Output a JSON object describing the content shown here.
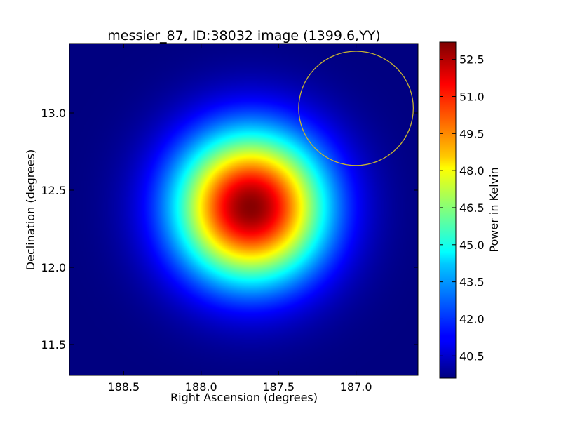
{
  "chart_data": {
    "type": "heatmap",
    "title": "messier_87, ID:38032 image (1399.6,YY)",
    "xlabel": "Right Ascension (degrees)",
    "ylabel": "Declination (degrees)",
    "xlim": [
      188.85,
      186.6
    ],
    "ylim": [
      11.3,
      13.45
    ],
    "x_ticks": [
      188.5,
      188.0,
      187.5,
      187.0
    ],
    "x_tick_labels": [
      "188.5",
      "188.0",
      "187.5",
      "187.0"
    ],
    "y_ticks": [
      11.5,
      12.0,
      12.5,
      13.0
    ],
    "y_tick_labels": [
      "11.5",
      "12.0",
      "12.5",
      "13.0"
    ],
    "colorbar": {
      "label": "Power in Kelvin",
      "range": [
        39.6,
        53.2
      ],
      "ticks": [
        40.5,
        42.0,
        43.5,
        45.0,
        46.5,
        48.0,
        49.5,
        51.0,
        52.5
      ],
      "tick_labels": [
        "40.5",
        "42.0",
        "43.5",
        "45.0",
        "46.5",
        "48.0",
        "49.5",
        "51.0",
        "52.5"
      ],
      "colormap": "jet"
    },
    "source": {
      "ra_center": 187.68,
      "dec_center": 12.39,
      "peak_value": 53.1,
      "background_value": 39.6,
      "sigma_deg": 0.34
    },
    "circle": {
      "ra_center": 187.0,
      "dec_center": 13.03,
      "radius_deg": 0.37,
      "color": "#c8b432"
    }
  }
}
